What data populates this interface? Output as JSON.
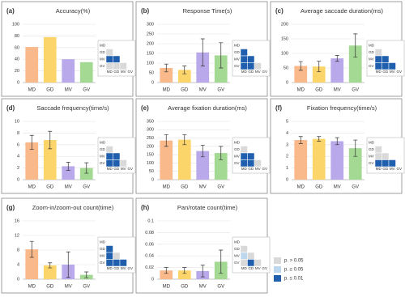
{
  "chart_data": [
    {
      "type": "bar",
      "label": "(a)",
      "title": "Accuracy(%)",
      "categories": [
        "MD",
        "GD",
        "MV",
        "GV"
      ],
      "values": [
        61,
        78,
        40,
        35
      ],
      "colors": [
        "#f9b98a",
        "#fcd56a",
        "#b9a8ea",
        "#a3d993"
      ],
      "ylim": [
        0,
        100
      ],
      "yticks": [
        0,
        20,
        40,
        60,
        80,
        100
      ],
      "significance": [
        [
          0
        ],
        [
          2,
          2
        ],
        [
          0,
          0,
          0
        ]
      ]
    },
    {
      "type": "bar",
      "label": "(b)",
      "title": "Response Time(s)",
      "categories": [
        "MD",
        "GD",
        "MV",
        "GV"
      ],
      "values": [
        75,
        65,
        155,
        140
      ],
      "errors": [
        20,
        20,
        70,
        65
      ],
      "colors": [
        "#f9b98a",
        "#fcd56a",
        "#b9a8ea",
        "#a3d993"
      ],
      "ylim": [
        0,
        300
      ],
      "yticks": [
        0,
        50,
        100,
        150,
        200,
        250,
        300
      ],
      "significance": [
        [
          2
        ],
        [
          2,
          2
        ],
        [
          2,
          2,
          0
        ]
      ]
    },
    {
      "type": "bar",
      "label": "(c)",
      "title": "Average saccade duration(ms)",
      "categories": [
        "MD",
        "GD",
        "MV",
        "GV"
      ],
      "values": [
        57,
        55,
        83,
        127
      ],
      "errors": [
        15,
        18,
        10,
        40
      ],
      "colors": [
        "#f9b98a",
        "#fcd56a",
        "#b9a8ea",
        "#a3d993"
      ],
      "ylim": [
        0,
        200
      ],
      "yticks": [
        0,
        50,
        100,
        150,
        200
      ],
      "significance": [
        [
          0
        ],
        [
          2,
          2
        ],
        [
          2,
          2,
          2
        ]
      ]
    },
    {
      "type": "bar",
      "label": "(d)",
      "title": "Saccade frequency(time/s)",
      "categories": [
        "MD",
        "GD",
        "MV",
        "GV"
      ],
      "values": [
        6.4,
        6.8,
        2.3,
        2.0
      ],
      "errors": [
        1.2,
        1.5,
        0.7,
        0.9
      ],
      "colors": [
        "#f9b98a",
        "#fcd56a",
        "#b9a8ea",
        "#a3d993"
      ],
      "ylim": [
        0,
        10
      ],
      "yticks": [
        0,
        2,
        4,
        6,
        8,
        10
      ],
      "significance": [
        [
          0
        ],
        [
          2,
          2
        ],
        [
          2,
          2,
          0
        ]
      ]
    },
    {
      "type": "bar",
      "label": "(e)",
      "title": "Average fixation duration(ms)",
      "categories": [
        "MD",
        "GD",
        "MV",
        "GV"
      ],
      "values": [
        235,
        240,
        172,
        160
      ],
      "errors": [
        35,
        30,
        35,
        40
      ],
      "colors": [
        "#f9b98a",
        "#fcd56a",
        "#b9a8ea",
        "#a3d993"
      ],
      "ylim": [
        0,
        350
      ],
      "yticks": [
        0,
        50,
        100,
        150,
        200,
        250,
        300,
        350
      ],
      "significance": [
        [
          0
        ],
        [
          2,
          2
        ],
        [
          2,
          2,
          0
        ]
      ]
    },
    {
      "type": "bar",
      "label": "(f)",
      "title": "Fixation frequency(time/s)",
      "categories": [
        "MD",
        "GD",
        "MV",
        "GV"
      ],
      "values": [
        3.4,
        3.5,
        3.3,
        2.7
      ],
      "errors": [
        0.3,
        0.2,
        0.3,
        0.7
      ],
      "colors": [
        "#f9b98a",
        "#fcd56a",
        "#b9a8ea",
        "#a3d993"
      ],
      "ylim": [
        0,
        5
      ],
      "yticks": [
        0,
        1,
        2,
        3,
        4,
        5
      ],
      "significance": [
        [
          0
        ],
        [
          0,
          0
        ],
        [
          2,
          2,
          2
        ]
      ]
    },
    {
      "type": "bar",
      "label": "(g)",
      "title": "Zoom-in/zoom-out count(time)",
      "categories": [
        "MD",
        "GD",
        "MV",
        "GV"
      ],
      "values": [
        8.2,
        3.8,
        4.0,
        1.2
      ],
      "errors": [
        2.2,
        0.7,
        3.5,
        0.8
      ],
      "colors": [
        "#f9b98a",
        "#fcd56a",
        "#b9a8ea",
        "#a3d993"
      ],
      "ylim": [
        0,
        16
      ],
      "yticks": [
        0,
        4,
        8,
        12,
        16
      ],
      "significance": [
        [
          2
        ],
        [
          2,
          0
        ],
        [
          2,
          2,
          2
        ]
      ]
    },
    {
      "type": "bar",
      "label": "(h)",
      "title": "Pan/rotate count(time)",
      "categories": [
        "MD",
        "GD",
        "MV",
        "GV"
      ],
      "values": [
        0.015,
        0.015,
        0.014,
        0.03
      ],
      "errors": [
        0.005,
        0.005,
        0.01,
        0.02
      ],
      "colors": [
        "#f9b98a",
        "#fcd56a",
        "#b9a8ea",
        "#a3d993"
      ],
      "ylim": [
        0,
        0.1
      ],
      "yticks": [
        0,
        0.02,
        0.04,
        0.06,
        0.08,
        0.1
      ],
      "significance": [
        [
          0
        ],
        [
          1,
          0
        ],
        [
          0,
          2,
          0
        ]
      ]
    }
  ],
  "significance_legend": [
    {
      "label": "p. > 0.05",
      "color": "#d9d9d9"
    },
    {
      "label": "p. ≤ 0.05",
      "color": "#bdd7ee"
    },
    {
      "label": "p. ≤ 0.01",
      "color": "#1f5fae"
    }
  ]
}
